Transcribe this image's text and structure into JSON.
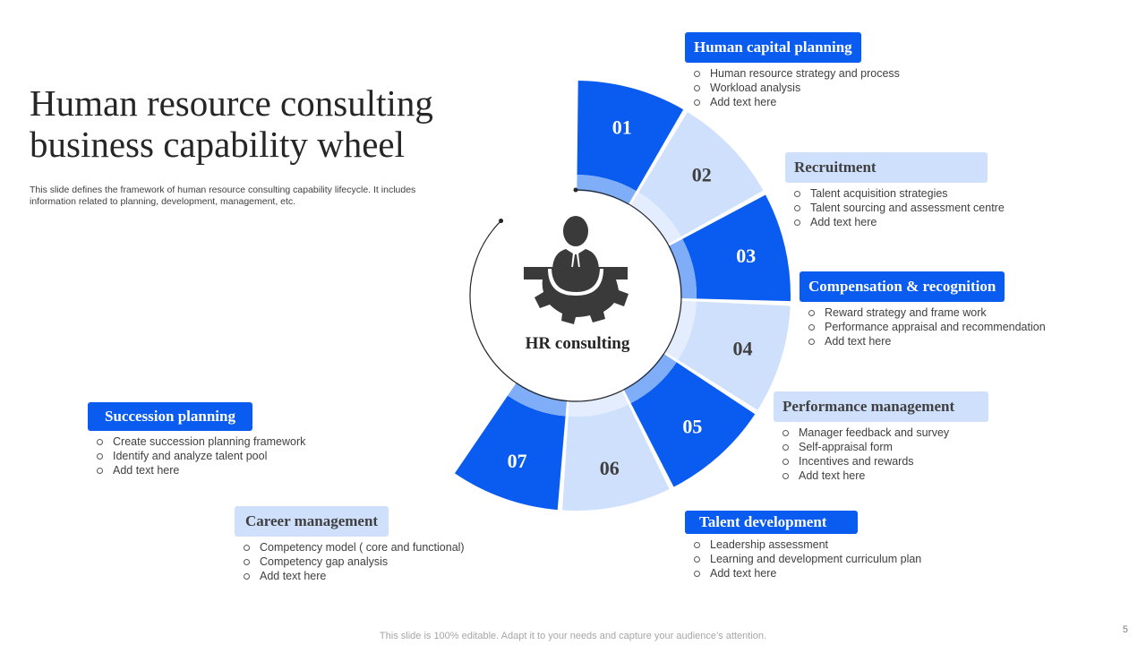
{
  "slide": {
    "title": "Human resource consulting business capability wheel",
    "subtitle": "This slide defines the framework of human resource consulting capability lifecycle. It includes information related to planning, development, management, etc.",
    "footer": "This slide is 100% editable. Adapt it to your needs and capture your audience’s attention.",
    "page_number": "5"
  },
  "center": {
    "label": "HR consulting",
    "icon": "businessman-gear-icon"
  },
  "colors": {
    "dark_blue": "#0a5bef",
    "light_blue": "#cfe0fc",
    "mid_blue": "#7fadf7",
    "center_fill": "#ffffff"
  },
  "segments": [
    {
      "number": "01",
      "style": "dark"
    },
    {
      "number": "02",
      "style": "light"
    },
    {
      "number": "03",
      "style": "dark"
    },
    {
      "number": "04",
      "style": "light"
    },
    {
      "number": "05",
      "style": "dark"
    },
    {
      "number": "06",
      "style": "light"
    },
    {
      "number": "07",
      "style": "dark"
    }
  ],
  "sections": [
    {
      "heading": "Human capital planning",
      "style": "dark",
      "items": [
        "Human resource strategy  and process",
        "Workload analysis",
        "Add text here"
      ]
    },
    {
      "heading": "Recruitment",
      "style": "light",
      "items": [
        "Talent acquisition strategies",
        "Talent sourcing and assessment centre",
        "Add text here"
      ]
    },
    {
      "heading": "Compensation & recognition",
      "style": "dark",
      "items": [
        "Reward strategy and frame work",
        "Performance  appraisal and recommendation",
        "Add text here"
      ]
    },
    {
      "heading": "Performance management",
      "style": "light",
      "items": [
        "Manager feedback and survey",
        "Self-appraisal form",
        "Incentives and rewards",
        "Add text here"
      ]
    },
    {
      "heading": "Talent development",
      "style": "dark",
      "items": [
        "Leadership assessment",
        "Learning and development  curriculum plan",
        "Add text here"
      ]
    },
    {
      "heading": "Career management",
      "style": "light",
      "items": [
        "Competency model ( core and functional)",
        "Competency gap analysis",
        "Add text here"
      ]
    },
    {
      "heading": "Succession planning",
      "style": "dark",
      "items": [
        "Create succession planning framework",
        "Identify and analyze talent pool",
        "Add text here"
      ]
    }
  ]
}
